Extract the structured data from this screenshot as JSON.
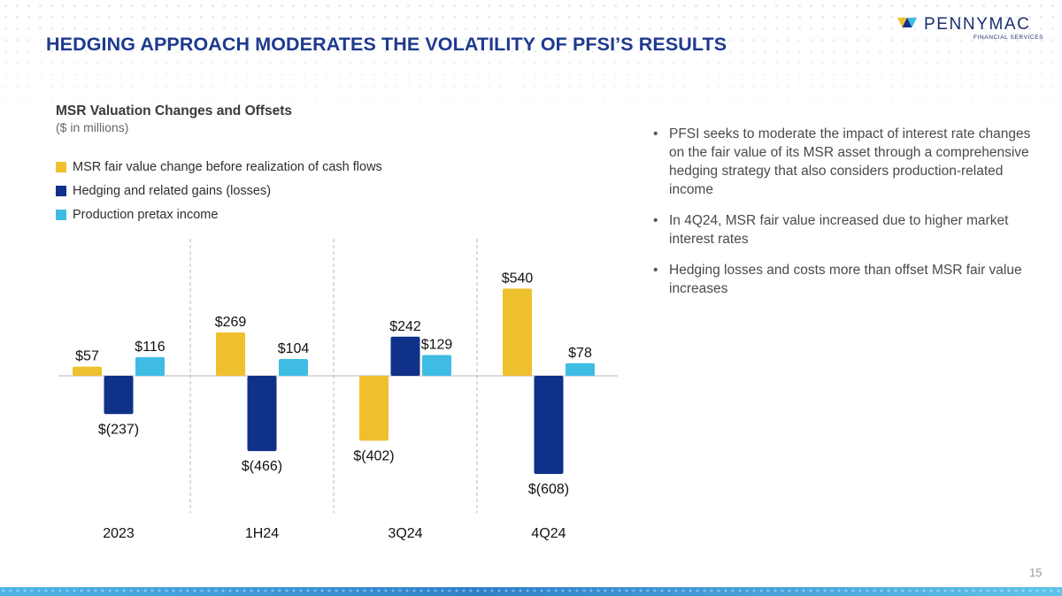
{
  "slide": {
    "headline": "HEDGING APPROACH MODERATES THE VOLATILITY OF PFSI’S RESULTS",
    "page_number": "15"
  },
  "logo": {
    "name": "PENNYMAC",
    "subtitle": "FINANCIAL SERVICES"
  },
  "colors": {
    "headline": "#1e3a8f",
    "msr": "#efc02e",
    "hedging": "#10318a",
    "production": "#3ebce4"
  },
  "bullets": [
    "PFSI seeks to moderate the impact of interest rate changes on the fair value of its MSR asset through a comprehensive hedging strategy that also considers production-related income",
    "In 4Q24, MSR fair value increased due to higher market interest rates",
    "Hedging losses and costs more than offset MSR fair value increases"
  ],
  "chart_data": {
    "type": "bar",
    "title": "MSR Valuation Changes and Offsets",
    "subtitle": "($ in millions)",
    "categories": [
      "2023",
      "1H24",
      "3Q24",
      "4Q24"
    ],
    "series": [
      {
        "name": "MSR fair value change before realization of cash flows",
        "color": "#efc02e",
        "values": [
          57,
          269,
          -402,
          540
        ],
        "labels": [
          "$57",
          "$269",
          "$(402)",
          "$540"
        ]
      },
      {
        "name": "Hedging and related gains (losses)",
        "color": "#10318a",
        "values": [
          -237,
          -466,
          242,
          -608
        ],
        "labels": [
          "$(237)",
          "$(466)",
          "$242",
          "$(608)"
        ]
      },
      {
        "name": "Production pretax income",
        "color": "#3ebce4",
        "values": [
          116,
          104,
          129,
          78
        ],
        "labels": [
          "$116",
          "$104",
          "$129",
          "$78"
        ]
      }
    ],
    "ylim": [
      -608,
      540
    ],
    "legend_position": "top-left",
    "grid": false
  }
}
